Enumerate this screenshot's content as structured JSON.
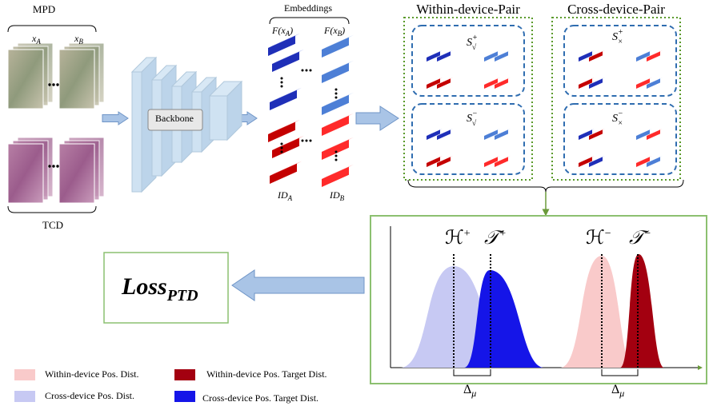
{
  "mpd": "MPD",
  "tcd": "TCD",
  "inputs": [
    {
      "base": "x",
      "sub": "A"
    },
    {
      "base": "x",
      "sub": "B"
    }
  ],
  "backbone": "Backbone",
  "embeddings": {
    "title": "Embeddings",
    "features": [
      {
        "base": "F(x",
        "sub": "A",
        "tail": ")"
      },
      {
        "base": "F(x",
        "sub": "B",
        "tail": ")"
      }
    ],
    "ids": [
      {
        "base": "ID",
        "sub": "A"
      },
      {
        "base": "ID",
        "sub": "B"
      }
    ]
  },
  "pairs": [
    {
      "title": "Within-device-Pair",
      "sets": [
        {
          "base": "S",
          "sub": "√",
          "sup": "+"
        },
        {
          "base": "S",
          "sub": "√",
          "sup": "−"
        }
      ]
    },
    {
      "title": "Cross-device-Pair",
      "sets": [
        {
          "base": "S",
          "sub": "×",
          "sup": "+"
        },
        {
          "base": "S",
          "sub": "×",
          "sup": "−"
        }
      ]
    }
  ],
  "distributions": {
    "labels": [
      {
        "base": "ℋ",
        "sup": "+"
      },
      {
        "base": "𝒯",
        "sup": "+"
      },
      {
        "base": "ℋ",
        "sup": "−"
      },
      {
        "base": "𝒯",
        "sup": "−"
      }
    ],
    "deltas": [
      {
        "base": "Δ",
        "sub": "μ"
      },
      {
        "base": "Δ",
        "sub": "μ"
      }
    ]
  },
  "loss": {
    "base": "Loss",
    "sub": "PTD"
  },
  "legend": [
    "Within-device Pos. Dist.",
    "Within-device Pos. Target Dist.",
    "Cross-device Pos. Dist.",
    "Cross-device Pos. Target Dist."
  ]
}
